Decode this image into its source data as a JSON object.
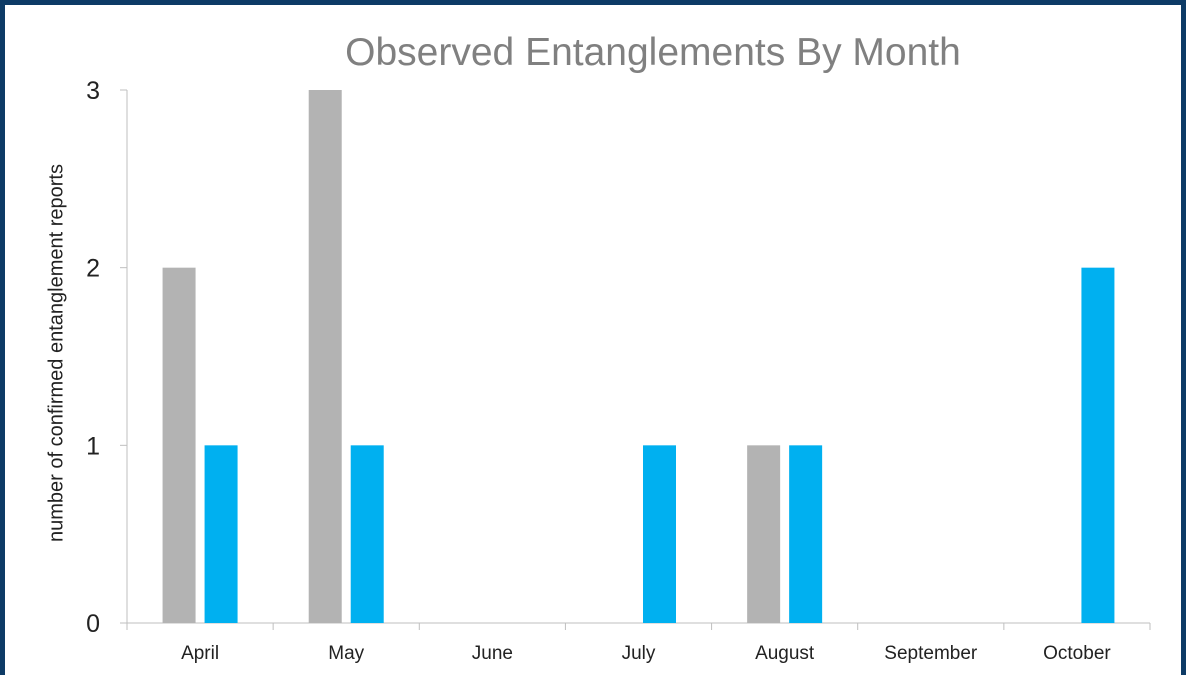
{
  "chart_data": {
    "type": "bar",
    "title": "Observed Entanglements By Month",
    "xlabel": "",
    "ylabel": "number of confirmed entanglement reports",
    "categories": [
      "April",
      "May",
      "June",
      "July",
      "August",
      "September",
      "October"
    ],
    "series": [
      {
        "color": "#b3b3b3",
        "values": [
          2,
          3,
          0,
          0,
          1,
          0,
          0
        ]
      },
      {
        "color": "#00b0f0",
        "values": [
          1,
          1,
          0,
          1,
          1,
          0,
          2
        ]
      }
    ],
    "yticks": [
      "0",
      "1",
      "2",
      "3"
    ],
    "ylim": [
      0,
      3
    ],
    "grid": false,
    "legend": "none"
  },
  "frame_color": "#0d3b66"
}
